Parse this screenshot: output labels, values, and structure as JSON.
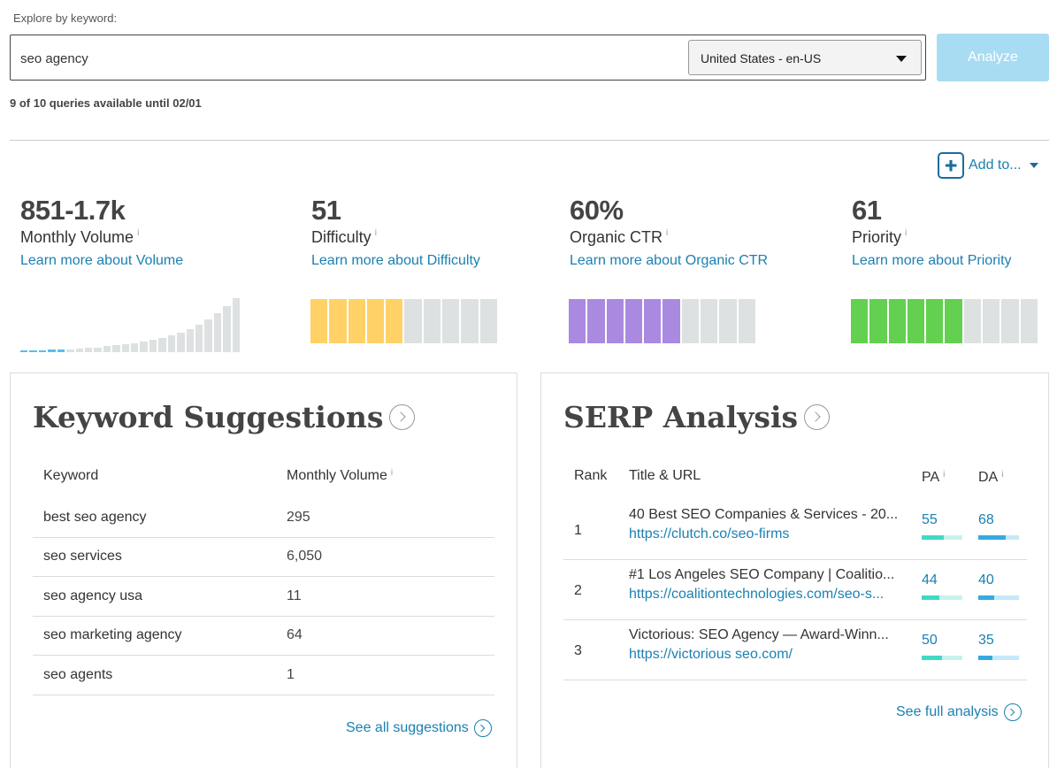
{
  "search": {
    "label": "Explore by keyword:",
    "value": "seo agency",
    "locale": "United States - en-US",
    "analyze_label": "Analyze",
    "queries_note": "9 of 10 queries available until 02/01"
  },
  "add_to_label": "Add to...",
  "metrics": [
    {
      "value": "851-1.7k",
      "name": "Monthly Volume",
      "info": "i",
      "link": "Learn more about Volume"
    },
    {
      "value": "51",
      "name": "Difficulty",
      "info": "i",
      "link": "Learn more about Difficulty",
      "filled_segments": 5,
      "total_segments": 10,
      "color": "#ffd166"
    },
    {
      "value": "60%",
      "name": "Organic CTR",
      "info": "i",
      "link": "Learn more about Organic CTR",
      "filled_segments": 6,
      "total_segments": 10,
      "color": "#a98ae0"
    },
    {
      "value": "61",
      "name": "Priority",
      "info": "i",
      "link": "Learn more about Priority",
      "filled_segments": 6,
      "total_segments": 10,
      "color": "#63d04f"
    }
  ],
  "volume_chart": {
    "levels": [
      0.03,
      0.03,
      0.03,
      0.05,
      0.05,
      0.05,
      0.07,
      0.08,
      0.09,
      0.11,
      0.13,
      0.15,
      0.17,
      0.2,
      0.23,
      0.27,
      0.31,
      0.36,
      0.42,
      0.5,
      0.6,
      0.72,
      0.86,
      1.0
    ],
    "highlighted_bars": 5,
    "highlight_color": "#5bbde8",
    "base_color": "#dde1e1"
  },
  "keyword_suggestions": {
    "title": "Keyword Suggestions",
    "col_keyword": "Keyword",
    "col_volume": "Monthly Volume",
    "info": "i",
    "rows": [
      {
        "keyword": "best seo agency",
        "volume": "295"
      },
      {
        "keyword": "seo services",
        "volume": "6,050"
      },
      {
        "keyword": "seo agency usa",
        "volume": "11"
      },
      {
        "keyword": "seo marketing agency",
        "volume": "64"
      },
      {
        "keyword": "seo agents",
        "volume": "1"
      }
    ],
    "see_all": "See all suggestions"
  },
  "serp_analysis": {
    "title": "SERP Analysis",
    "col_rank": "Rank",
    "col_title": "Title & URL",
    "col_pa": "PA",
    "col_da": "DA",
    "info": "i",
    "rows": [
      {
        "rank": "1",
        "title": "40 Best SEO Companies & Services - 20...",
        "url": "https://clutch.co/seo-firms",
        "pa": "55",
        "da": "68",
        "pa_fraction": 0.55,
        "da_fraction": 0.68
      },
      {
        "rank": "2",
        "title": "#1 Los Angeles SEO Company | Coalitio...",
        "url": "https://coalitiontechnologies.com/seo-s...",
        "pa": "44",
        "da": "40",
        "pa_fraction": 0.44,
        "da_fraction": 0.4
      },
      {
        "rank": "3",
        "title": "Victorious: SEO Agency — Award-Winn...",
        "url": "https://victorious seo.com/",
        "pa": "50",
        "da": "35",
        "pa_fraction": 0.5,
        "da_fraction": 0.35
      }
    ],
    "see_full": "See full analysis"
  }
}
